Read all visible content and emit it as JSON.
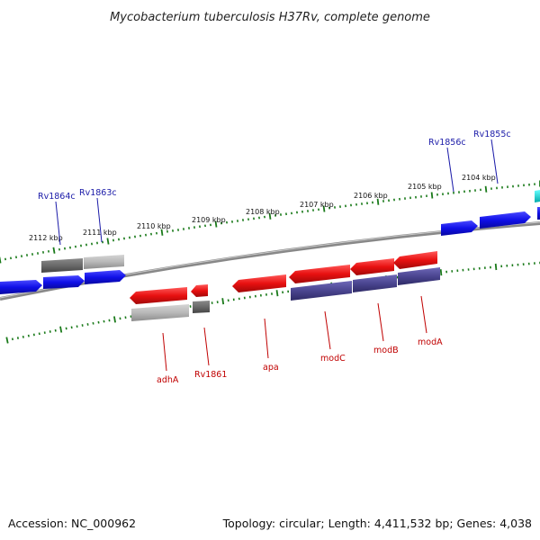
{
  "title": "Mycobacterium tuberculosis H37Rv, complete genome",
  "footer": {
    "accession": "Accession: NC_000962",
    "topology": "Topology: circular; Length: 4,411,532 bp; Genes: 4,038"
  },
  "colors": {
    "forward_gene": "#1010e8",
    "reverse_gene": "#e81010",
    "operon_purple": "#4a4590",
    "grey_dark": "#6a6a6a",
    "grey_light": "#b8b8b8",
    "cyan": "#00e0e0",
    "tick_green": "#1a7a1a",
    "backbone": "#808080"
  },
  "kbp_labels": [
    "2112 kbp",
    "2111 kbp",
    "2110 kbp",
    "2109 kbp",
    "2108 kbp",
    "2107 kbp",
    "2106 kbp",
    "2105 kbp",
    "2104 kbp"
  ],
  "forward_labels": [
    "Rv1864c",
    "Rv1863c",
    "Rv1856c",
    "Rv1855c"
  ],
  "reverse_labels": [
    "adhA",
    "Rv1861",
    "apa",
    "modC",
    "modB",
    "modA"
  ]
}
